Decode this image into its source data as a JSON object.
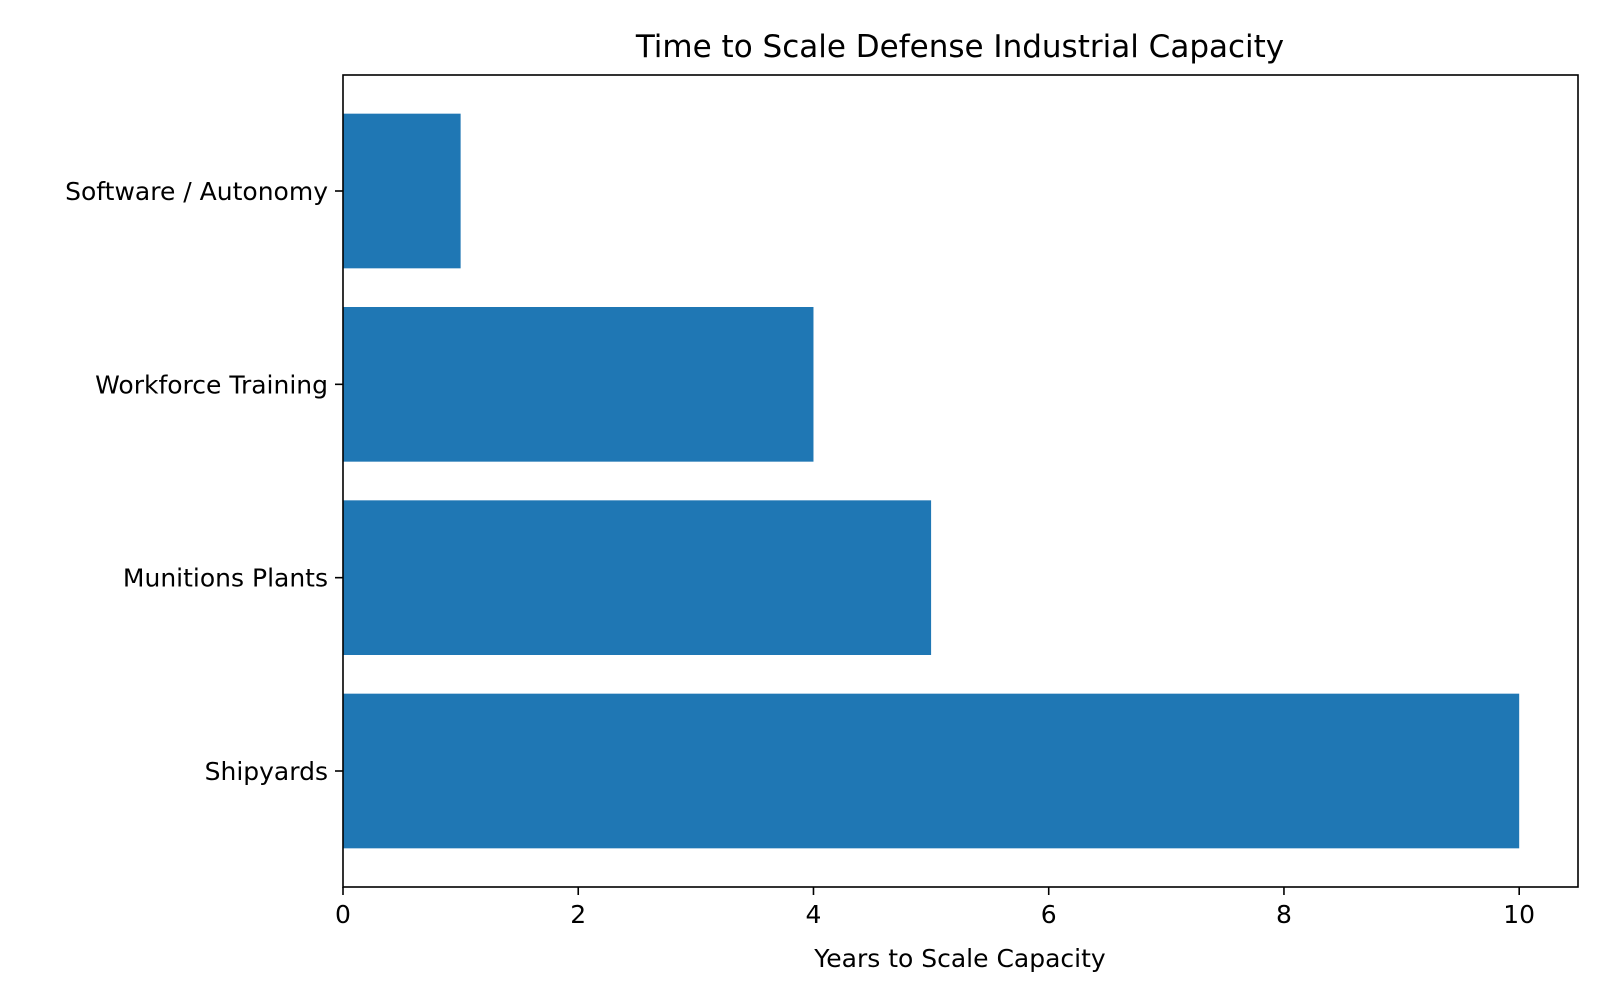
{
  "chart_data": {
    "type": "bar",
    "orientation": "horizontal",
    "title": "Time to Scale Defense Industrial Capacity",
    "xlabel": "Years to Scale Capacity",
    "ylabel": "",
    "categories": [
      "Shipyards",
      "Munitions Plants",
      "Workforce Training",
      "Software / Autonomy"
    ],
    "values": [
      10,
      5,
      4,
      1
    ],
    "xlim": [
      0,
      10.5
    ],
    "xticks": [
      0,
      2,
      4,
      6,
      8,
      10
    ],
    "bar_color": "#1f77b4",
    "grid": false,
    "legend": "none"
  }
}
